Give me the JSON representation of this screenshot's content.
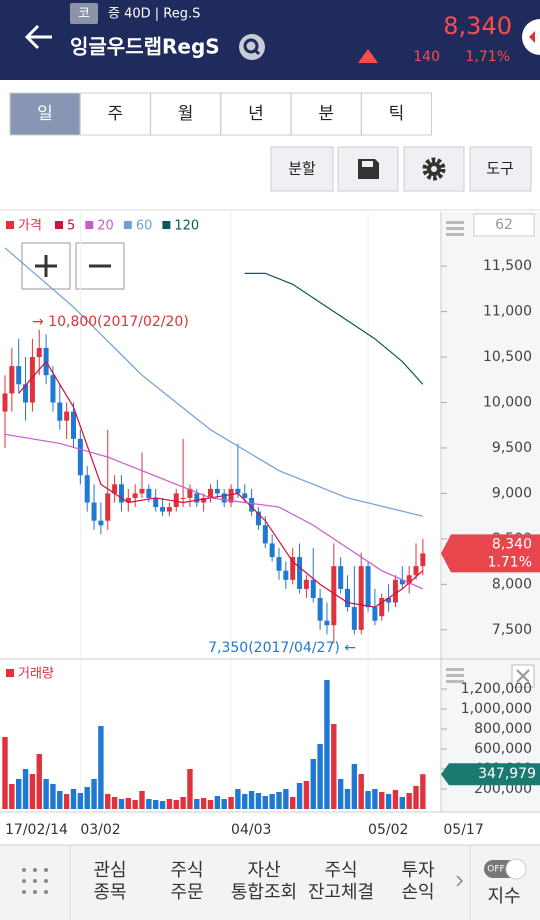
{
  "header": {
    "badge": "코",
    "meta": "증 40D | Reg.S",
    "name": "잉글우드랩RegS",
    "price": "8,340",
    "change": "140",
    "change_pct": "1,71%"
  },
  "tabs": [
    "일",
    "주",
    "월",
    "년",
    "분",
    "틱"
  ],
  "toolbar": [
    "분할",
    "도구"
  ],
  "chart": {
    "type": "candlestick",
    "legend_label": "가격",
    "up_color": "#e0323c",
    "down_color": "#1f78d1",
    "counter": "62",
    "ylim": [
      7190,
      12095
    ],
    "yticks": [
      {
        "value": 7500,
        "label": "7,500"
      },
      {
        "value": 8000,
        "label": "8,000"
      },
      {
        "value": 8500,
        "label": "8,500"
      },
      {
        "value": 9000,
        "label": "9,000"
      },
      {
        "value": 9500,
        "label": "9,500"
      },
      {
        "value": 10000,
        "label": "10,000"
      },
      {
        "value": 10500,
        "label": "10,500"
      },
      {
        "value": 11000,
        "label": "11,000"
      },
      {
        "value": 11500,
        "label": "11,500"
      }
    ],
    "candles": [
      [
        9900,
        10300,
        9500,
        10100
      ],
      [
        10100,
        10600,
        9900,
        10400
      ],
      [
        10400,
        10700,
        10100,
        10200
      ],
      [
        10200,
        10500,
        9800,
        10000
      ],
      [
        10000,
        10700,
        9900,
        10500
      ],
      [
        10500,
        10800,
        10300,
        10600
      ],
      [
        10600,
        10750,
        10200,
        10300
      ],
      [
        10300,
        10400,
        9900,
        10000
      ],
      [
        10000,
        10200,
        9700,
        9800
      ],
      [
        9800,
        10000,
        9600,
        9900
      ],
      [
        9900,
        10000,
        9500,
        9600
      ],
      [
        9600,
        9700,
        9100,
        9200
      ],
      [
        9200,
        9300,
        8800,
        8900
      ],
      [
        8900,
        9100,
        8600,
        8700
      ],
      [
        8700,
        8900,
        8550,
        8650
      ],
      [
        8700,
        9700,
        8600,
        9000
      ],
      [
        9000,
        9200,
        8900,
        9100
      ],
      [
        9100,
        9200,
        8800,
        8900
      ],
      [
        8900,
        9050,
        8800,
        8950
      ],
      [
        8950,
        9100,
        8850,
        9000
      ],
      [
        9000,
        9450,
        8950,
        9050
      ],
      [
        9050,
        9100,
        8900,
        8950
      ],
      [
        8950,
        9050,
        8800,
        8850
      ],
      [
        8850,
        8950,
        8750,
        8800
      ],
      [
        8800,
        8900,
        8750,
        8850
      ],
      [
        8850,
        9050,
        8800,
        9000
      ],
      [
        8950,
        9600,
        8850,
        8950
      ],
      [
        8950,
        9100,
        8850,
        9050
      ],
      [
        9000,
        9050,
        8850,
        8900
      ],
      [
        8900,
        9000,
        8800,
        8950
      ],
      [
        8950,
        9100,
        8900,
        9050
      ],
      [
        9050,
        9150,
        8950,
        9000
      ],
      [
        9000,
        9050,
        8850,
        8900
      ],
      [
        8900,
        9100,
        8850,
        9050
      ],
      [
        9050,
        9550,
        8950,
        9000
      ],
      [
        9000,
        9100,
        8900,
        8950
      ],
      [
        8950,
        9050,
        8750,
        8800
      ],
      [
        8800,
        8850,
        8600,
        8650
      ],
      [
        8650,
        8750,
        8400,
        8450
      ],
      [
        8450,
        8550,
        8250,
        8300
      ],
      [
        8300,
        8400,
        8050,
        8150
      ],
      [
        8150,
        8250,
        7950,
        8050
      ],
      [
        8050,
        8400,
        8000,
        8300
      ],
      [
        8300,
        8450,
        7900,
        7950
      ],
      [
        7950,
        8100,
        7850,
        8050
      ],
      [
        8050,
        8400,
        7800,
        7850
      ],
      [
        7850,
        7950,
        7500,
        7600
      ],
      [
        7600,
        7800,
        7450,
        7550
      ],
      [
        7550,
        8450,
        7350,
        8200
      ],
      [
        8200,
        8300,
        7900,
        7950
      ],
      [
        7950,
        8100,
        7700,
        7750
      ],
      [
        7750,
        8200,
        7450,
        7500
      ],
      [
        7500,
        8350,
        7450,
        8200
      ],
      [
        8200,
        8250,
        7700,
        7750
      ],
      [
        7750,
        7950,
        7550,
        7600
      ],
      [
        7650,
        7900,
        7600,
        7850
      ],
      [
        7850,
        8000,
        7700,
        7800
      ],
      [
        7800,
        8100,
        7750,
        8050
      ],
      [
        8050,
        8200,
        7950,
        8000
      ],
      [
        8000,
        8200,
        7900,
        8100
      ],
      [
        8100,
        8450,
        8050,
        8200
      ],
      [
        8200,
        8500,
        8100,
        8340
      ]
    ],
    "moving_averages": [
      {
        "name": "5",
        "color": "#d0103a",
        "x": [
          2,
          6,
          10,
          14,
          18,
          22,
          26,
          30,
          34,
          38,
          42,
          46,
          50,
          54,
          58,
          61
        ],
        "values": [
          10100,
          10450,
          9950,
          9100,
          8900,
          8950,
          8900,
          8950,
          9000,
          8700,
          8250,
          8000,
          7800,
          7750,
          7950,
          8150
        ]
      },
      {
        "name": "20",
        "color": "#c85ad0",
        "x": [
          0,
          8,
          15,
          20,
          25,
          30,
          35,
          40,
          45,
          50,
          55,
          61
        ],
        "values": [
          9650,
          9550,
          9400,
          9250,
          9100,
          8950,
          8900,
          8850,
          8650,
          8400,
          8150,
          7950
        ]
      },
      {
        "name": "60",
        "color": "#6fa0d8",
        "x": [
          0,
          10,
          20,
          30,
          40,
          50,
          61
        ],
        "values": [
          11700,
          11050,
          10300,
          9700,
          9250,
          8950,
          8750
        ]
      },
      {
        "name": "120",
        "color": "#0b5a5a",
        "x": [
          35,
          38,
          42,
          46,
          50,
          54,
          58,
          61
        ],
        "values": [
          11420,
          11420,
          11300,
          11100,
          10900,
          10700,
          10450,
          10200
        ]
      }
    ],
    "high_annotation": "→ 10,800(2017/02/20)",
    "low_annotation": "7,350(2017/04/27) ←",
    "current_price": {
      "value": 8340,
      "label": "8,340"
    },
    "current_pct": "1.71%",
    "x_labels": [
      {
        "label": "17/02/14",
        "index": 0
      },
      {
        "label": "03/02",
        "index": 11
      },
      {
        "label": "04/03",
        "index": 33
      },
      {
        "label": "05/02",
        "index": 53
      },
      {
        "label": "05/17",
        "index": 64
      }
    ]
  },
  "volume": {
    "type": "bar",
    "title": "거래량",
    "ylim": [
      0,
      1490000
    ],
    "yticks": [
      {
        "value": 200000,
        "label": "200,000"
      },
      {
        "value": 400000,
        "label": "400,000"
      },
      {
        "value": 600000,
        "label": "600,000"
      },
      {
        "value": 800000,
        "label": "800,000"
      },
      {
        "value": 1000000,
        "label": "1,000,000"
      },
      {
        "value": 1200000,
        "label": "1,200,000"
      }
    ],
    "values": [
      720000,
      250000,
      300000,
      400000,
      350000,
      550000,
      300000,
      250000,
      180000,
      150000,
      200000,
      160000,
      220000,
      300000,
      830000,
      150000,
      120000,
      100000,
      110000,
      90000,
      180000,
      100000,
      90000,
      80000,
      100000,
      90000,
      120000,
      400000,
      100000,
      110000,
      90000,
      130000,
      100000,
      120000,
      200000,
      150000,
      180000,
      160000,
      130000,
      150000,
      170000,
      200000,
      120000,
      260000,
      280000,
      500000,
      650000,
      1290000,
      850000,
      300000,
      200000,
      450000,
      350000,
      180000,
      200000,
      170000,
      150000,
      190000,
      120000,
      160000,
      230000,
      347979
    ],
    "current": {
      "value": 347979,
      "label": "347,979"
    }
  },
  "nav": {
    "items": [
      [
        "관심",
        "종목"
      ],
      [
        "주식",
        "주문"
      ],
      [
        "자산",
        "통합조회"
      ],
      [
        "주식",
        "잔고체결"
      ],
      [
        "투자",
        "손익"
      ]
    ],
    "toggle": "OFF",
    "index": "지수"
  }
}
